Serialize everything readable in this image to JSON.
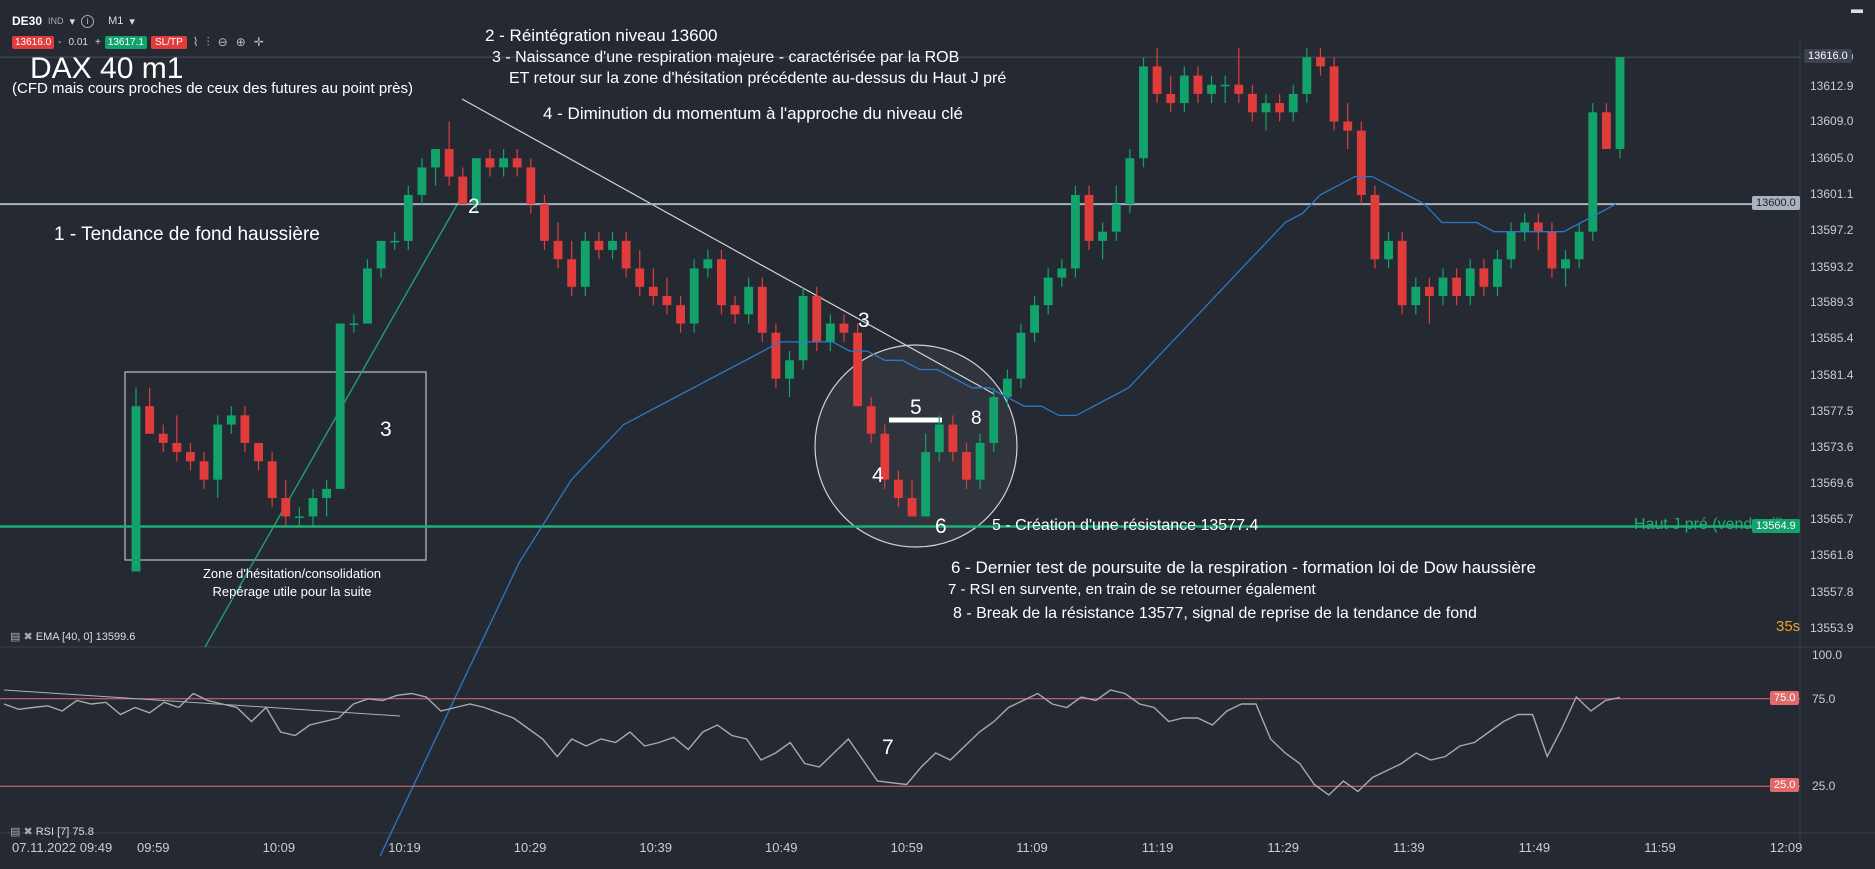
{
  "toolbar": {
    "symbol": "DE30",
    "ind": "IND",
    "timeframe": "M1",
    "bid": "13616.0",
    "qty": "0.01",
    "ask": "13617.1",
    "sltp": "SL/TP",
    "icons": [
      "line-icon",
      "bars-icon",
      "zoom-out-icon",
      "zoom-in-icon",
      "crosshair-icon"
    ]
  },
  "title": "DAX 40 m1",
  "subtitle": "(CFD mais cours proches de ceux des futures au point près)",
  "annotations": {
    "a1": "1 - Tendance de fond haussière",
    "a2": "2 - Réintégration niveau 13600",
    "a3a": "3 - Naissance d'une respiration majeure - caractérisée par la ROB",
    "a3b": "ET retour sur la zone d'hésitation précédente au-dessus du Haut J pré",
    "a4": "4 - Diminution du momentum à l'approche du niveau clé",
    "a5": "5 - Création d'une résistance 13577.4",
    "a6": "6 - Dernier test de poursuite de la respiration - formation loi de Dow haussière",
    "a7": "7 - RSI en survente, en train de se retourner également",
    "a8": "8 - Break de la résistance 13577, signal de reprise de la tendance de fond"
  },
  "chart_numbers": {
    "n2": "2",
    "n3_trend": "3",
    "n3_zone": "3",
    "n4": "4",
    "n5": "5",
    "n6": "6",
    "n7": "7",
    "n8": "8"
  },
  "zone": {
    "line1": "Zone d'hésitation/consolidation",
    "line2": "Repérage utile pour la suite"
  },
  "haut_label": "Haut J pré (vendredi)",
  "indicators": {
    "ema": "EMA [40, 0] 13599.6",
    "rsi": "RSI [7] 75.8"
  },
  "date_label": "07.11.2022 09:49",
  "countdown": "35s",
  "tags": {
    "last": "13616.0",
    "level": "13600.0",
    "haut": "13564.9",
    "rsi75": "75.0",
    "rsi25": "25.0"
  },
  "colors": {
    "background": "#252a32",
    "bull": "#12a26b",
    "bear": "#e03c3c",
    "ema": "#2f77c4",
    "rsi": "#9aa0a6",
    "haut_line": "#1bb07a",
    "level_line": "#a8b3bf",
    "rsi_bands": "#e07070"
  },
  "chart_data": {
    "type": "candlestick",
    "title": "DAX 40 m1",
    "y_ticks": [
      "13616.0",
      "13612.9",
      "13609.0",
      "13605.0",
      "13601.1",
      "13597.2",
      "13593.2",
      "13589.3",
      "13585.4",
      "13581.4",
      "13577.5",
      "13573.6",
      "13569.6",
      "13565.7",
      "13561.8",
      "13557.8",
      "13553.9"
    ],
    "x_ticks": [
      "09:59",
      "10:09",
      "10:19",
      "10:29",
      "10:39",
      "10:49",
      "10:59",
      "11:09",
      "11:19",
      "11:29",
      "11:39",
      "11:49",
      "11:59",
      "12:09"
    ],
    "ylim": [
      13552,
      13620
    ],
    "levels": {
      "resistance_13600": 13600.0,
      "haut_j_pre": 13564.9,
      "last": 13616.0
    },
    "candles": [
      [
        13560,
        13580,
        13560,
        13578
      ],
      [
        13578,
        13580,
        13575,
        13575
      ],
      [
        13575,
        13576,
        13573,
        13574
      ],
      [
        13574,
        13577,
        13572,
        13573
      ],
      [
        13573,
        13574,
        13571,
        13572
      ],
      [
        13572,
        13573,
        13569,
        13570
      ],
      [
        13570,
        13577,
        13568,
        13576
      ],
      [
        13576,
        13578,
        13575,
        13577
      ],
      [
        13577,
        13578,
        13573,
        13574
      ],
      [
        13574,
        13574,
        13571,
        13572
      ],
      [
        13572,
        13573,
        13567,
        13568
      ],
      [
        13568,
        13570,
        13565,
        13566
      ],
      [
        13566,
        13567,
        13565,
        13566
      ],
      [
        13566,
        13569,
        13565,
        13568
      ],
      [
        13568,
        13570,
        13566,
        13569
      ],
      [
        13569,
        13587,
        13569,
        13587
      ],
      [
        13587,
        13588,
        13586,
        13587
      ],
      [
        13587,
        13594,
        13587,
        13593
      ],
      [
        13593,
        13596,
        13592,
        13596
      ],
      [
        13596,
        13597,
        13595,
        13596
      ],
      [
        13596,
        13602,
        13595,
        13601
      ],
      [
        13601,
        13605,
        13600,
        13604
      ],
      [
        13604,
        13606,
        13602,
        13606
      ],
      [
        13606,
        13609,
        13602,
        13603
      ],
      [
        13603,
        13604,
        13600,
        13600
      ],
      [
        13600,
        13605,
        13599,
        13605
      ],
      [
        13605,
        13606,
        13603,
        13604
      ],
      [
        13604,
        13606,
        13603,
        13605
      ],
      [
        13605,
        13606,
        13603,
        13604
      ],
      [
        13604,
        13605,
        13599,
        13600
      ],
      [
        13600,
        13601,
        13595,
        13596
      ],
      [
        13596,
        13598,
        13593,
        13594
      ],
      [
        13594,
        13596,
        13590,
        13591
      ],
      [
        13591,
        13597,
        13590,
        13596
      ],
      [
        13596,
        13597,
        13594,
        13595
      ],
      [
        13595,
        13597,
        13594,
        13596
      ],
      [
        13596,
        13597,
        13592,
        13593
      ],
      [
        13593,
        13595,
        13590,
        13591
      ],
      [
        13591,
        13593,
        13589,
        13590
      ],
      [
        13590,
        13592,
        13588,
        13589
      ],
      [
        13589,
        13590,
        13586,
        13587
      ],
      [
        13587,
        13594,
        13586,
        13593
      ],
      [
        13593,
        13595,
        13592,
        13594
      ],
      [
        13594,
        13595,
        13588,
        13589
      ],
      [
        13589,
        13590,
        13587,
        13588
      ],
      [
        13588,
        13592,
        13587,
        13591
      ],
      [
        13591,
        13592,
        13585,
        13586
      ],
      [
        13586,
        13587,
        13580,
        13581
      ],
      [
        13581,
        13584,
        13579,
        13583
      ],
      [
        13583,
        13591,
        13582,
        13590
      ],
      [
        13590,
        13591,
        13584,
        13585
      ],
      [
        13585,
        13588,
        13584,
        13587
      ],
      [
        13587,
        13588,
        13585,
        13586
      ],
      [
        13586,
        13587,
        13578,
        13578
      ],
      [
        13578,
        13579,
        13574,
        13575
      ],
      [
        13575,
        13576,
        13569,
        13570
      ],
      [
        13570,
        13571,
        13567,
        13568
      ],
      [
        13568,
        13570,
        13566,
        13566
      ],
      [
        13566,
        13575,
        13566,
        13573
      ],
      [
        13573,
        13577,
        13572,
        13576
      ],
      [
        13576,
        13577,
        13572,
        13573
      ],
      [
        13573,
        13574,
        13569,
        13570
      ],
      [
        13570,
        13575,
        13569,
        13574
      ],
      [
        13574,
        13580,
        13573,
        13579
      ],
      [
        13579,
        13582,
        13578,
        13581
      ],
      [
        13581,
        13587,
        13580,
        13586
      ],
      [
        13586,
        13590,
        13585,
        13589
      ],
      [
        13589,
        13593,
        13588,
        13592
      ],
      [
        13592,
        13594,
        13591,
        13593
      ],
      [
        13593,
        13602,
        13592,
        13601
      ],
      [
        13601,
        13602,
        13595,
        13596
      ],
      [
        13596,
        13598,
        13594,
        13597
      ],
      [
        13597,
        13602,
        13596,
        13600
      ],
      [
        13600,
        13606,
        13599,
        13605
      ],
      [
        13605,
        13616,
        13604,
        13615
      ],
      [
        13615,
        13617,
        13611,
        13612
      ],
      [
        13612,
        13614,
        13610,
        13611
      ],
      [
        13611,
        13615,
        13610,
        13614
      ],
      [
        13614,
        13615,
        13611,
        13612
      ],
      [
        13612,
        13614,
        13611,
        13613
      ],
      [
        13613,
        13614,
        13611,
        13613
      ],
      [
        13613,
        13617,
        13611,
        13612
      ],
      [
        13612,
        13613,
        13609,
        13610
      ],
      [
        13610,
        13612,
        13608,
        13611
      ],
      [
        13611,
        13612,
        13609,
        13610
      ],
      [
        13610,
        13613,
        13609,
        13612
      ],
      [
        13612,
        13617,
        13611,
        13616
      ],
      [
        13616,
        13617,
        13614,
        13615
      ],
      [
        13615,
        13616,
        13608,
        13609
      ],
      [
        13609,
        13611,
        13606,
        13608
      ],
      [
        13608,
        13609,
        13600,
        13601
      ],
      [
        13601,
        13602,
        13593,
        13594
      ],
      [
        13594,
        13597,
        13593,
        13596
      ],
      [
        13596,
        13597,
        13588,
        13589
      ],
      [
        13589,
        13592,
        13588,
        13591
      ],
      [
        13591,
        13592,
        13587,
        13590
      ],
      [
        13590,
        13593,
        13589,
        13592
      ],
      [
        13592,
        13593,
        13589,
        13590
      ],
      [
        13590,
        13594,
        13589,
        13593
      ],
      [
        13593,
        13594,
        13590,
        13591
      ],
      [
        13591,
        13595,
        13590,
        13594
      ],
      [
        13594,
        13598,
        13593,
        13597
      ],
      [
        13597,
        13599,
        13596,
        13598
      ],
      [
        13598,
        13599,
        13595,
        13597
      ],
      [
        13597,
        13598,
        13592,
        13593
      ],
      [
        13593,
        13595,
        13591,
        13594
      ],
      [
        13594,
        13598,
        13593,
        13597
      ],
      [
        13597,
        13611,
        13596,
        13610
      ],
      [
        13610,
        13611,
        13606,
        13606
      ],
      [
        13606,
        13616,
        13605,
        13616
      ]
    ],
    "ema_values": [
      13529,
      13533,
      13537,
      13541,
      13545,
      13549,
      13553,
      13557,
      13561,
      13564,
      13567,
      13570,
      13572,
      13574,
      13576,
      13577,
      13578,
      13579,
      13580,
      13581,
      13582,
      13583,
      13584,
      13585,
      13585,
      13585,
      13585,
      13584,
      13584,
      13583,
      13583,
      13582,
      13582,
      13581,
      13580,
      13580,
      13579,
      13578,
      13578,
      13577,
      13577,
      13578,
      13579,
      13580,
      13582,
      13584,
      13586,
      13588,
      13590,
      13592,
      13594,
      13596,
      13598,
      13599,
      13601,
      13602,
      13603,
      13603,
      13602,
      13601,
      13600,
      13598,
      13598,
      13598,
      13597,
      13597,
      13597,
      13597,
      13597,
      13598,
      13599,
      13600
    ],
    "rsi_values": [
      72,
      69,
      70,
      71,
      68,
      74,
      72,
      73,
      66,
      70,
      67,
      73,
      70,
      78,
      74,
      72,
      70,
      62,
      70,
      56,
      54,
      60,
      62,
      64,
      72,
      75,
      74,
      77,
      78,
      76,
      68,
      70,
      72,
      70,
      67,
      64,
      58,
      52,
      42,
      52,
      48,
      52,
      50,
      56,
      48,
      50,
      53,
      46,
      56,
      60,
      54,
      52,
      40,
      44,
      50,
      38,
      36,
      44,
      52,
      40,
      28,
      27,
      26,
      36,
      44,
      40,
      48,
      56,
      62,
      70,
      74,
      78,
      72,
      70,
      76,
      74,
      80,
      78,
      72,
      70,
      62,
      64,
      64,
      60,
      68,
      72,
      72,
      52,
      44,
      38,
      26,
      20,
      28,
      22,
      30,
      34,
      38,
      44,
      40,
      42,
      48,
      50,
      56,
      62,
      66,
      66,
      42,
      58,
      76,
      68,
      74,
      75.8
    ],
    "rsi_range": [
      0,
      100
    ],
    "rsi_bands": [
      25,
      75
    ]
  }
}
